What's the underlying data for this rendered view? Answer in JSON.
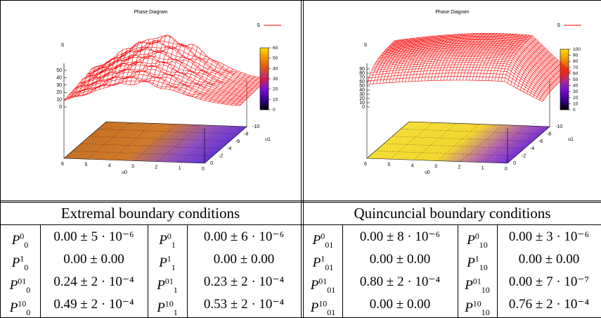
{
  "panels": [
    {
      "title": "Phase Diagram",
      "legend": "S",
      "zlabel": "S",
      "xlabel": "u0",
      "ylabel": "u1",
      "zticks": [
        "0",
        "10",
        "20",
        "30",
        "40",
        "50"
      ],
      "xticks": [
        "6",
        "5",
        "4",
        "3",
        "2",
        "1",
        "0"
      ],
      "yticks": [
        "0",
        "-2",
        "-4",
        "-6",
        "-8",
        "-10"
      ],
      "cbticks": [
        "0",
        "10",
        "20",
        "30",
        "40",
        "50",
        "60"
      ],
      "zmax_shown": 60
    },
    {
      "title": "Phase Diagram",
      "legend": "S",
      "zlabel": "S",
      "xlabel": "u0",
      "ylabel": "u1",
      "zticks": [
        "0",
        "10",
        "20",
        "30",
        "40",
        "50",
        "60",
        "70",
        "80",
        "90"
      ],
      "xticks": [
        "6",
        "5",
        "4",
        "3",
        "2",
        "1",
        "0"
      ],
      "yticks": [
        "0",
        "-2",
        "-4",
        "-6",
        "-8",
        "-10"
      ],
      "cbticks": [
        "0",
        "10",
        "20",
        "30",
        "40",
        "50",
        "60",
        "70",
        "80",
        "90",
        "100"
      ],
      "zmax_shown": 100
    }
  ],
  "table": {
    "left_header": "Extremal boundary conditions",
    "right_header": "Quincuncial boundary conditions",
    "left_rows": [
      {
        "l1": {
          "base": "P",
          "sub": "0",
          "sup": "0"
        },
        "v1": "0.00 ± 5 · 10⁻⁶",
        "l2": {
          "base": "P",
          "sub": "1",
          "sup": "0"
        },
        "v2": "0.00 ± 6 · 10⁻⁶"
      },
      {
        "l1": {
          "base": "P",
          "sub": "0",
          "sup": "1"
        },
        "v1": "0.00 ± 0.00",
        "l2": {
          "base": "P",
          "sub": "1",
          "sup": "1"
        },
        "v2": "0.00 ± 0.00"
      },
      {
        "l1": {
          "base": "P",
          "sub": "0",
          "sup": "01"
        },
        "v1": "0.24 ± 2 · 10⁻⁴",
        "l2": {
          "base": "P",
          "sub": "1",
          "sup": "01"
        },
        "v2": "0.23 ± 2 · 10⁻⁴"
      },
      {
        "l1": {
          "base": "P",
          "sub": "0",
          "sup": "10"
        },
        "v1": "0.49 ± 2 · 10⁻⁴",
        "l2": {
          "base": "P",
          "sub": "1",
          "sup": "10"
        },
        "v2": "0.53 ± 2 · 10⁻⁴"
      }
    ],
    "right_rows": [
      {
        "l1": {
          "base": "P",
          "sub": "01",
          "sup": "0"
        },
        "v1": "0.00 ± 8 · 10⁻⁶",
        "l2": {
          "base": "P",
          "sub": "10",
          "sup": "0"
        },
        "v2": "0.00 ± 3 · 10⁻⁶"
      },
      {
        "l1": {
          "base": "P",
          "sub": "01",
          "sup": "1"
        },
        "v1": "0.00 ± 0.00",
        "l2": {
          "base": "P",
          "sub": "10",
          "sup": "1"
        },
        "v2": "0.00 ± 0.00"
      },
      {
        "l1": {
          "base": "P",
          "sub": "01",
          "sup": "01"
        },
        "v1": "0.80 ± 2 · 10⁻⁴",
        "l2": {
          "base": "P",
          "sub": "10",
          "sup": "01"
        },
        "v2": "0.00 ± 7 · 10⁻⁷"
      },
      {
        "l1": {
          "base": "P",
          "sub": "01",
          "sup": "10"
        },
        "v1": "0.00 ± 0.00",
        "l2": {
          "base": "P",
          "sub": "10",
          "sup": "10"
        },
        "v2": "0.76 ± 2 · 10⁻⁴"
      }
    ]
  },
  "colors": {
    "surface": "#ff0000",
    "palette": [
      "#000000",
      "#3a0090",
      "#7a10d0",
      "#b03080",
      "#d85020",
      "#f09000",
      "#ffe000"
    ]
  }
}
